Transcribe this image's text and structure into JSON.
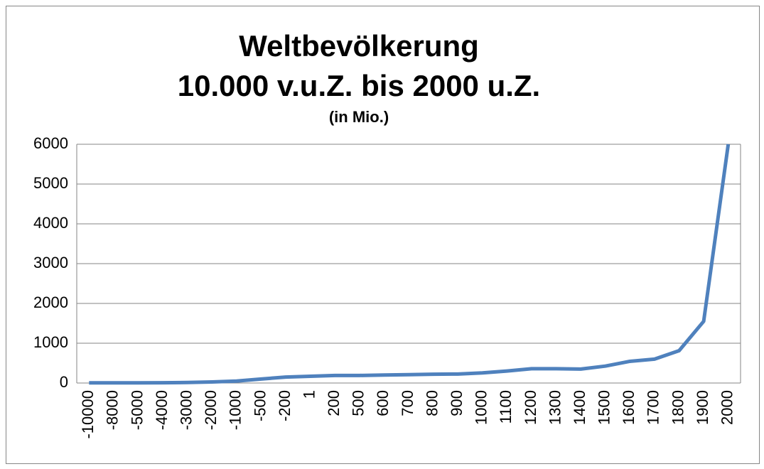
{
  "chart_data": {
    "type": "line",
    "title": [
      "Weltbevölkerung",
      "10.000 v.u.Z. bis 2000 u.Z."
    ],
    "subtitle": "(in Mio.)",
    "categories": [
      "-10000",
      "-8000",
      "-5000",
      "-4000",
      "-3000",
      "-2000",
      "-1000",
      "-500",
      "-200",
      "1",
      "200",
      "500",
      "600",
      "700",
      "800",
      "900",
      "1000",
      "1100",
      "1200",
      "1300",
      "1400",
      "1500",
      "1600",
      "1700",
      "1800",
      "1900",
      "2000"
    ],
    "values": [
      4,
      5,
      5,
      7,
      14,
      27,
      50,
      100,
      150,
      170,
      190,
      190,
      200,
      210,
      220,
      226,
      254,
      301,
      360,
      360,
      350,
      425,
      545,
      600,
      813,
      1550,
      6000
    ],
    "color": "#4f81bd",
    "ylim": [
      0,
      6000
    ],
    "yticks": [
      0,
      1000,
      2000,
      3000,
      4000,
      5000,
      6000
    ],
    "grid": true
  }
}
